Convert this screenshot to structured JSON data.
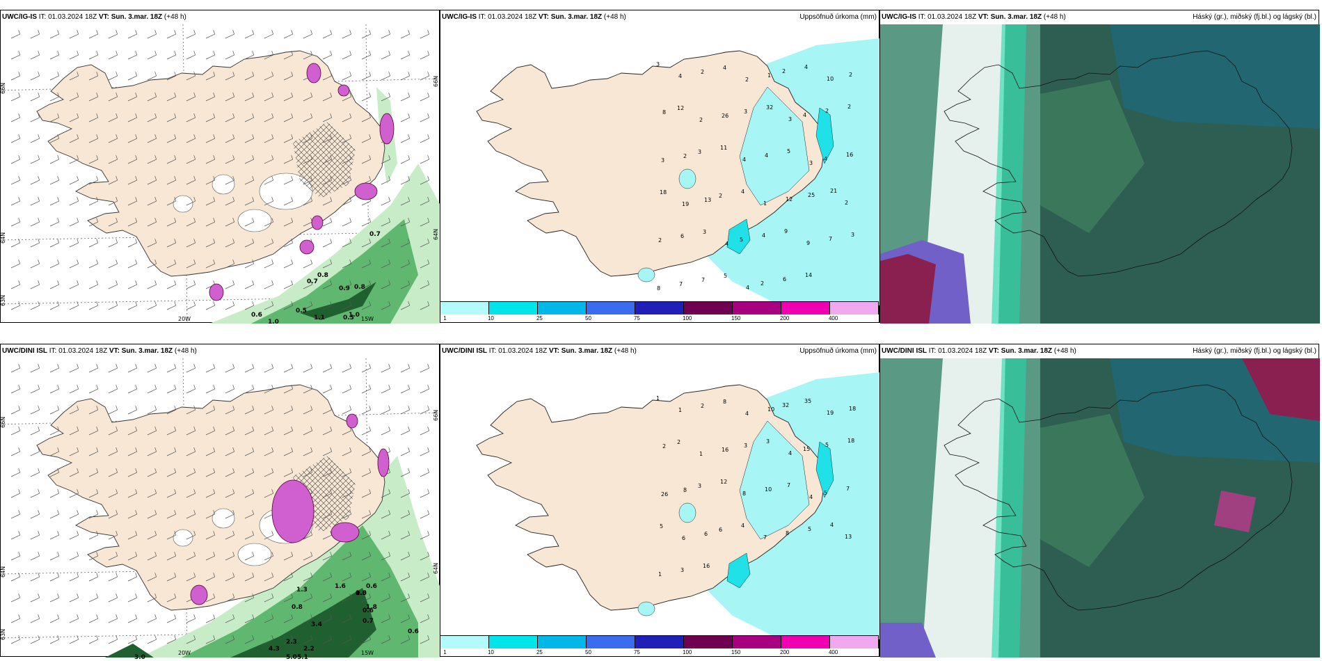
{
  "panels": {
    "p1": {
      "model": "UWC/IG-IS",
      "it_label": "IT:",
      "it": "01.03.2024 18Z",
      "vt_label": "VT:",
      "vt": "Sun. 3.mar. 18Z",
      "lead": "(+48 h)",
      "right": ""
    },
    "p2": {
      "model": "UWC/IG-IS",
      "it_label": "IT:",
      "it": "01.03.2024 18Z",
      "vt_label": "VT:",
      "vt": "Sun. 3.mar. 18Z",
      "lead": "(+48 h)",
      "right": "Uppsöfnuð úrkoma (mm)"
    },
    "p3": {
      "model": "UWC/IG-IS",
      "it_label": "IT:",
      "it": "01.03.2024 18Z",
      "vt_label": "VT:",
      "vt": "Sun. 3.mar. 18Z",
      "lead": "(+48 h)",
      "right": "Háský (gr.), miðský (fj.bl.) og lágský (bl.)"
    },
    "p4": {
      "model": "UWC/DINI ISL",
      "it_label": "IT:",
      "it": "01.03.2024 18Z",
      "vt_label": "VT:",
      "vt": "Sun. 3.mar. 18Z",
      "lead": "(+48 h)",
      "right": ""
    },
    "p5": {
      "model": "UWC/DINI ISL",
      "it_label": "IT:",
      "it": "01.03.2024 18Z",
      "vt_label": "VT:",
      "vt": "Sun. 3.mar. 18Z",
      "lead": "(+48 h)",
      "right": "Uppsöfnuð úrkoma (mm)"
    },
    "p6": {
      "model": "UWC/DINI ISL",
      "it_label": "IT:",
      "it": "01.03.2024 18Z",
      "vt_label": "VT:",
      "vt": "Sun. 3.mar. 18Z",
      "lead": "(+48 h)",
      "right": "Háský (gr.), miðský (fj.bl.) og lágský (bl.)"
    }
  },
  "axis_labels": {
    "lat66": "66N",
    "lat64": "64N",
    "lat63": "63N",
    "lon20": "20W",
    "lon15": "15W"
  },
  "colorbar": {
    "labels": [
      "1",
      "10",
      "25",
      "50",
      "75",
      "100",
      "150",
      "200",
      "400"
    ],
    "colors": [
      "#b3fbfb",
      "#00e5ea",
      "#00b8e8",
      "#3a6cf0",
      "#2020b8",
      "#700050",
      "#a80080",
      "#f000b0",
      "#f0a8f0"
    ]
  },
  "colors": {
    "land": "#f7e7d4",
    "sea": "#ffffff",
    "precip_light": "#a8f5f5",
    "precip_mid": "#20e0e8",
    "snow": "#d060d0",
    "green1": "#c8ecc8",
    "green2": "#60b870",
    "green3": "#206030"
  },
  "precip_values_top": [
    "3",
    "4",
    "2",
    "4",
    "2",
    "1",
    "2",
    "4",
    "10",
    "2",
    "8",
    "12",
    "2",
    "26",
    "3",
    "32",
    "3",
    "4",
    "2",
    "2",
    "3",
    "2",
    "3",
    "11",
    "4",
    "4",
    "5",
    "3",
    "4",
    "16",
    "18",
    "19",
    "13",
    "2",
    "4",
    "1",
    "12",
    "25",
    "21",
    "2",
    "2",
    "6",
    "3",
    "4",
    "5",
    "4",
    "9",
    "9",
    "7",
    "3",
    "8",
    "7",
    "7",
    "5",
    "4",
    "2",
    "6",
    "14"
  ],
  "precip_values_bottom": [
    "1",
    "1",
    "2",
    "8",
    "4",
    "10",
    "32",
    "35",
    "19",
    "18",
    "2",
    "2",
    "1",
    "16",
    "3",
    "3",
    "4",
    "15",
    "5",
    "18",
    "26",
    "8",
    "3",
    "12",
    "8",
    "10",
    "7",
    "4",
    "5",
    "7",
    "5",
    "6",
    "6",
    "6",
    "4",
    "7",
    "8",
    "5",
    "4",
    "13",
    "1",
    "3",
    "16"
  ],
  "wind_values_top": [
    "0.7",
    "0.8",
    "0.7",
    "0.9",
    "0.8",
    "0.5",
    "0.6",
    "1.0",
    "1.1",
    "0.5",
    "1.0"
  ],
  "wind_values_bottom": [
    "0.6",
    "0.6",
    "0.5",
    "0.6",
    "0.7",
    "0.8",
    "3.4",
    "2.3",
    "2.2",
    "4.3",
    "5.05.1",
    "1.0",
    "3.0",
    "1.8",
    "1.6",
    "1.3"
  ]
}
